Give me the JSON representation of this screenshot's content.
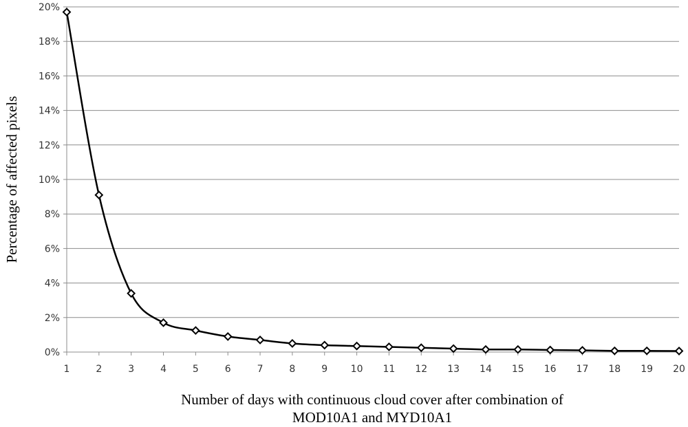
{
  "chart_data": {
    "type": "line",
    "ylabel": "Percentage of affected pixels",
    "xlabel": [
      "Number of days with continuous cloud cover after combination of",
      "MOD10A1 and MYD10A1"
    ],
    "x": [
      1,
      2,
      3,
      4,
      5,
      6,
      7,
      8,
      9,
      10,
      11,
      12,
      13,
      14,
      15,
      16,
      17,
      18,
      19,
      20
    ],
    "series": [
      {
        "color": "#000000",
        "values": [
          19.7,
          9.1,
          3.4,
          1.7,
          1.25,
          0.9,
          0.7,
          0.5,
          0.4,
          0.35,
          0.3,
          0.25,
          0.2,
          0.15,
          0.15,
          0.12,
          0.1,
          0.07,
          0.07,
          0.06
        ]
      }
    ],
    "xlim": [
      1,
      20
    ],
    "xticks": [
      1,
      2,
      3,
      4,
      5,
      6,
      7,
      8,
      9,
      10,
      11,
      12,
      13,
      14,
      15,
      16,
      17,
      18,
      19,
      20
    ],
    "ylim": [
      0,
      20
    ],
    "yticks": [
      {
        "value": 0,
        "label": "0%"
      },
      {
        "value": 2,
        "label": "2%"
      },
      {
        "value": 4,
        "label": "4%"
      },
      {
        "value": 6,
        "label": "6%"
      },
      {
        "value": 8,
        "label": "8%"
      },
      {
        "value": 10,
        "label": "10%"
      },
      {
        "value": 12,
        "label": "12%"
      },
      {
        "value": 14,
        "label": "14%"
      },
      {
        "value": 16,
        "label": "16%"
      },
      {
        "value": 18,
        "label": "18%"
      },
      {
        "value": 20,
        "label": "20%"
      }
    ],
    "grid": true,
    "smooth": true
  }
}
